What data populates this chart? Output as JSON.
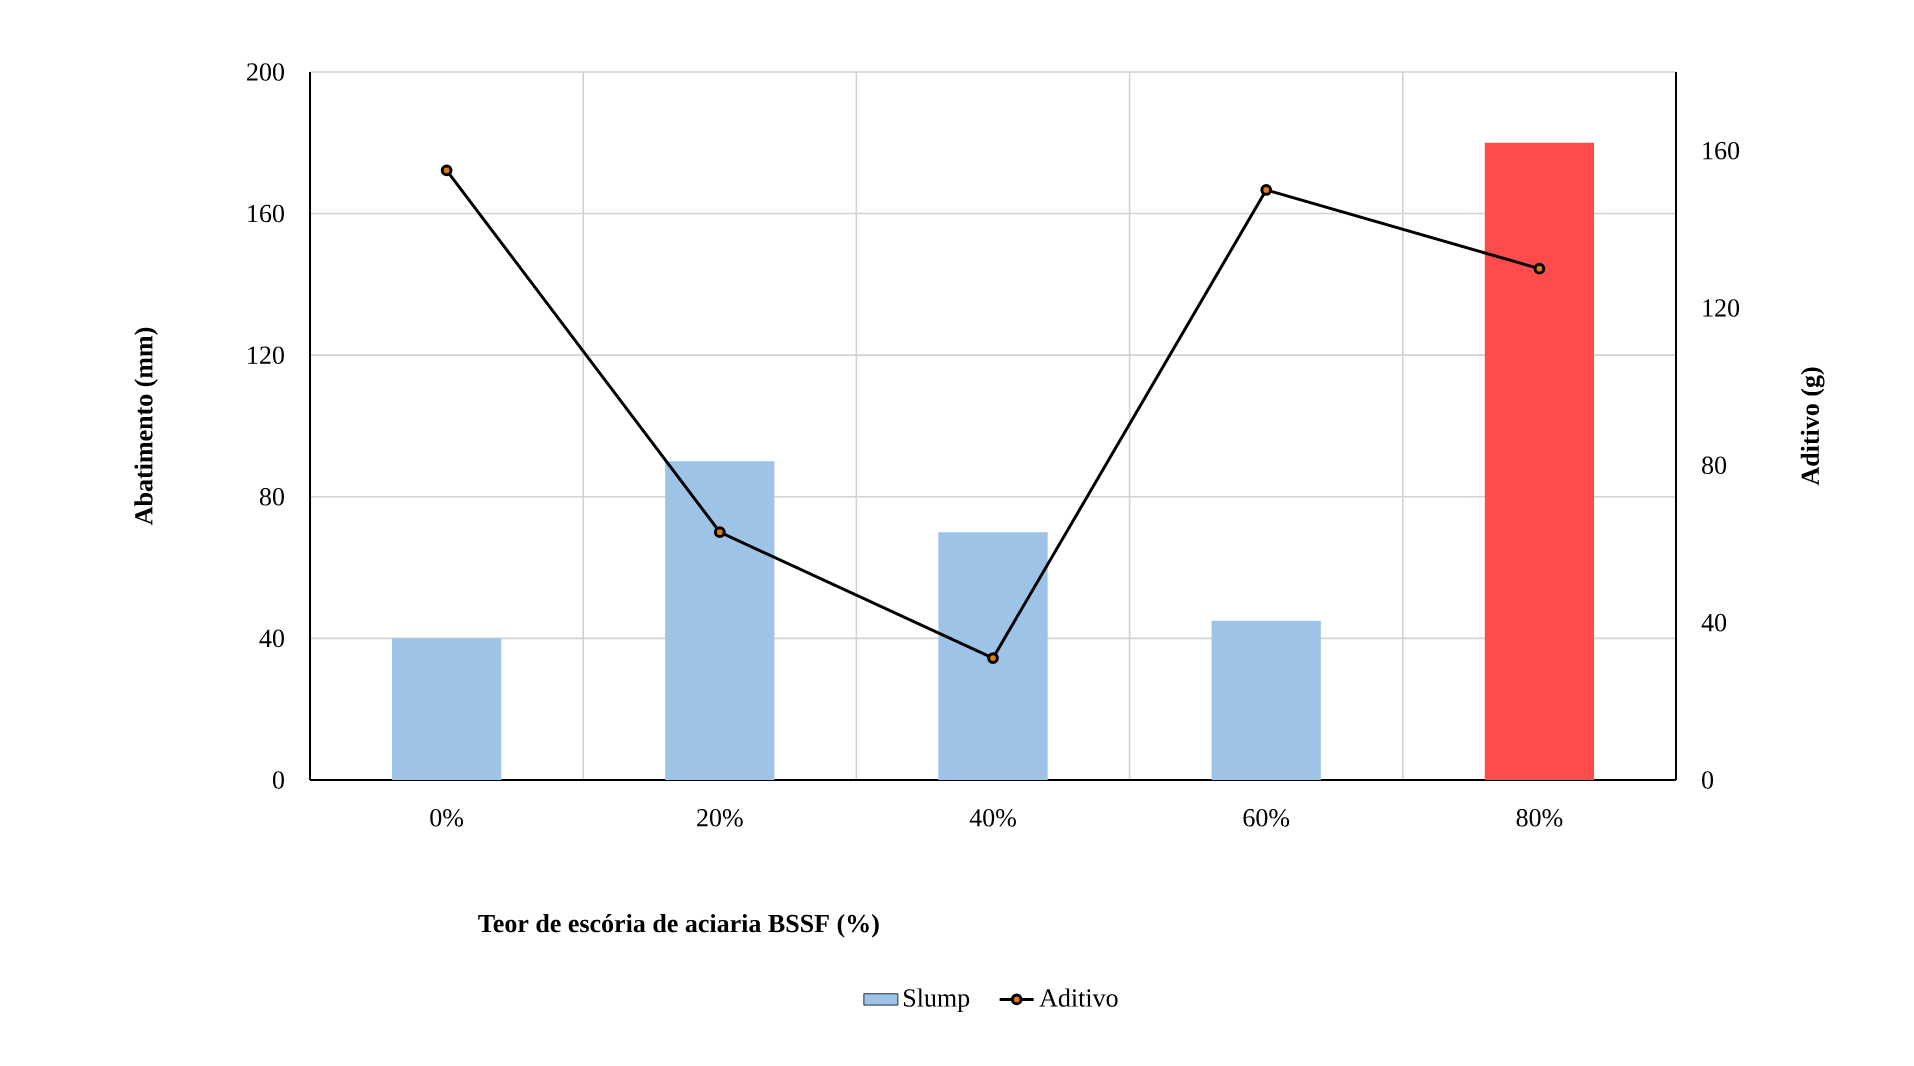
{
  "chart_data": {
    "type": "bar",
    "xlabel": "Teor de escória de aciaria BSSF (%)",
    "ylabel": "Abatimento (mm)",
    "y2label": "Aditivo (g)",
    "categories": [
      "0%",
      "20%",
      "40%",
      "60%",
      "80%"
    ],
    "series": [
      {
        "name": "Slump",
        "color": "#9dc3e6",
        "colors": [
          "#9dc3e6",
          "#9dc3e6",
          "#9dc3e6",
          "#9dc3e6",
          "#ff4b4b"
        ],
        "values": [
          40,
          90,
          70,
          45,
          180
        ]
      },
      {
        "name": "Aditivo",
        "type": "line",
        "axis": "y2",
        "color": "#000000",
        "marker": "circle",
        "values": [
          155,
          63,
          31,
          150,
          130
        ]
      }
    ],
    "ylim": [
      0,
      200
    ],
    "yticks": [
      0,
      40,
      80,
      120,
      160,
      200
    ],
    "y2lim": [
      0,
      180
    ],
    "y2ticks": [
      0,
      40,
      80,
      120,
      160
    ],
    "grid": true,
    "legend": "bottom"
  }
}
